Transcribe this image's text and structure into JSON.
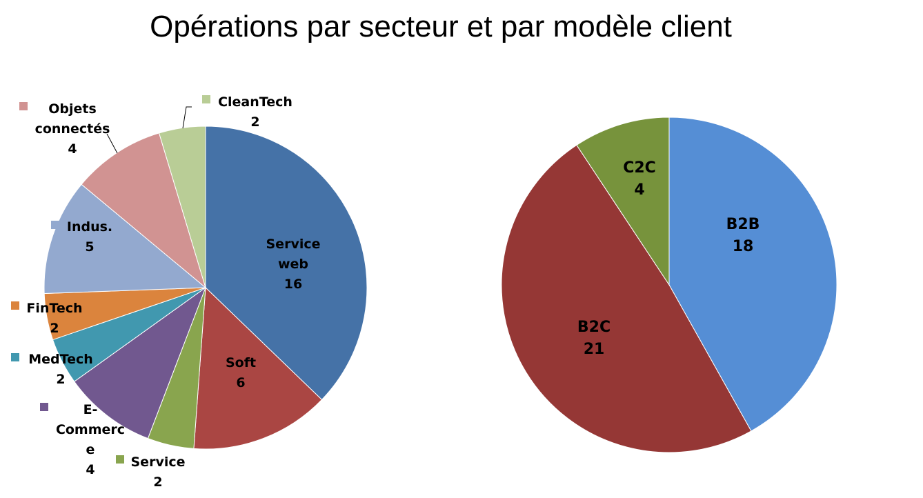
{
  "title": "Opérations par secteur et par modèle client",
  "chart_data": [
    {
      "type": "pie",
      "slices": [
        {
          "name": "Service web",
          "value": 16,
          "color": "#4572A7",
          "label_lines": [
            "Service",
            "web"
          ],
          "value_label": "16"
        },
        {
          "name": "Soft",
          "value": 6,
          "color": "#AA4643",
          "label_lines": [
            "Soft"
          ],
          "value_label": "6"
        },
        {
          "name": "Service",
          "value": 2,
          "color": "#89A54E",
          "label_lines": [
            "Service"
          ],
          "value_label": "2"
        },
        {
          "name": "E-Commerce",
          "value": 4,
          "color": "#71588F",
          "label_lines": [
            "E-",
            "Commerc",
            "e"
          ],
          "value_label": "4"
        },
        {
          "name": "MedTech",
          "value": 2,
          "color": "#4198AF",
          "label_lines": [
            "MedTech"
          ],
          "value_label": "2"
        },
        {
          "name": "FinTech",
          "value": 2,
          "color": "#DB843D",
          "label_lines": [
            "FinTech"
          ],
          "value_label": "2"
        },
        {
          "name": "Indus.",
          "value": 5,
          "color": "#93A9CF",
          "label_lines": [
            "Indus."
          ],
          "value_label": "5"
        },
        {
          "name": "Objets connectés",
          "value": 4,
          "color": "#D19392",
          "label_lines": [
            "Objets",
            "connectés"
          ],
          "value_label": "4"
        },
        {
          "name": "CleanTech",
          "value": 2,
          "color": "#B9CD96",
          "label_lines": [
            "CleanTech"
          ],
          "value_label": "2"
        }
      ]
    },
    {
      "type": "pie",
      "slices": [
        {
          "name": "B2B",
          "value": 18,
          "color": "#558ED5",
          "label_lines": [
            "B2B"
          ],
          "value_label": "18"
        },
        {
          "name": "B2C",
          "value": 21,
          "color": "#953735",
          "label_lines": [
            "B2C"
          ],
          "value_label": "21"
        },
        {
          "name": "C2C",
          "value": 4,
          "color": "#77933C",
          "label_lines": [
            "C2C"
          ],
          "value_label": "4"
        }
      ]
    }
  ]
}
